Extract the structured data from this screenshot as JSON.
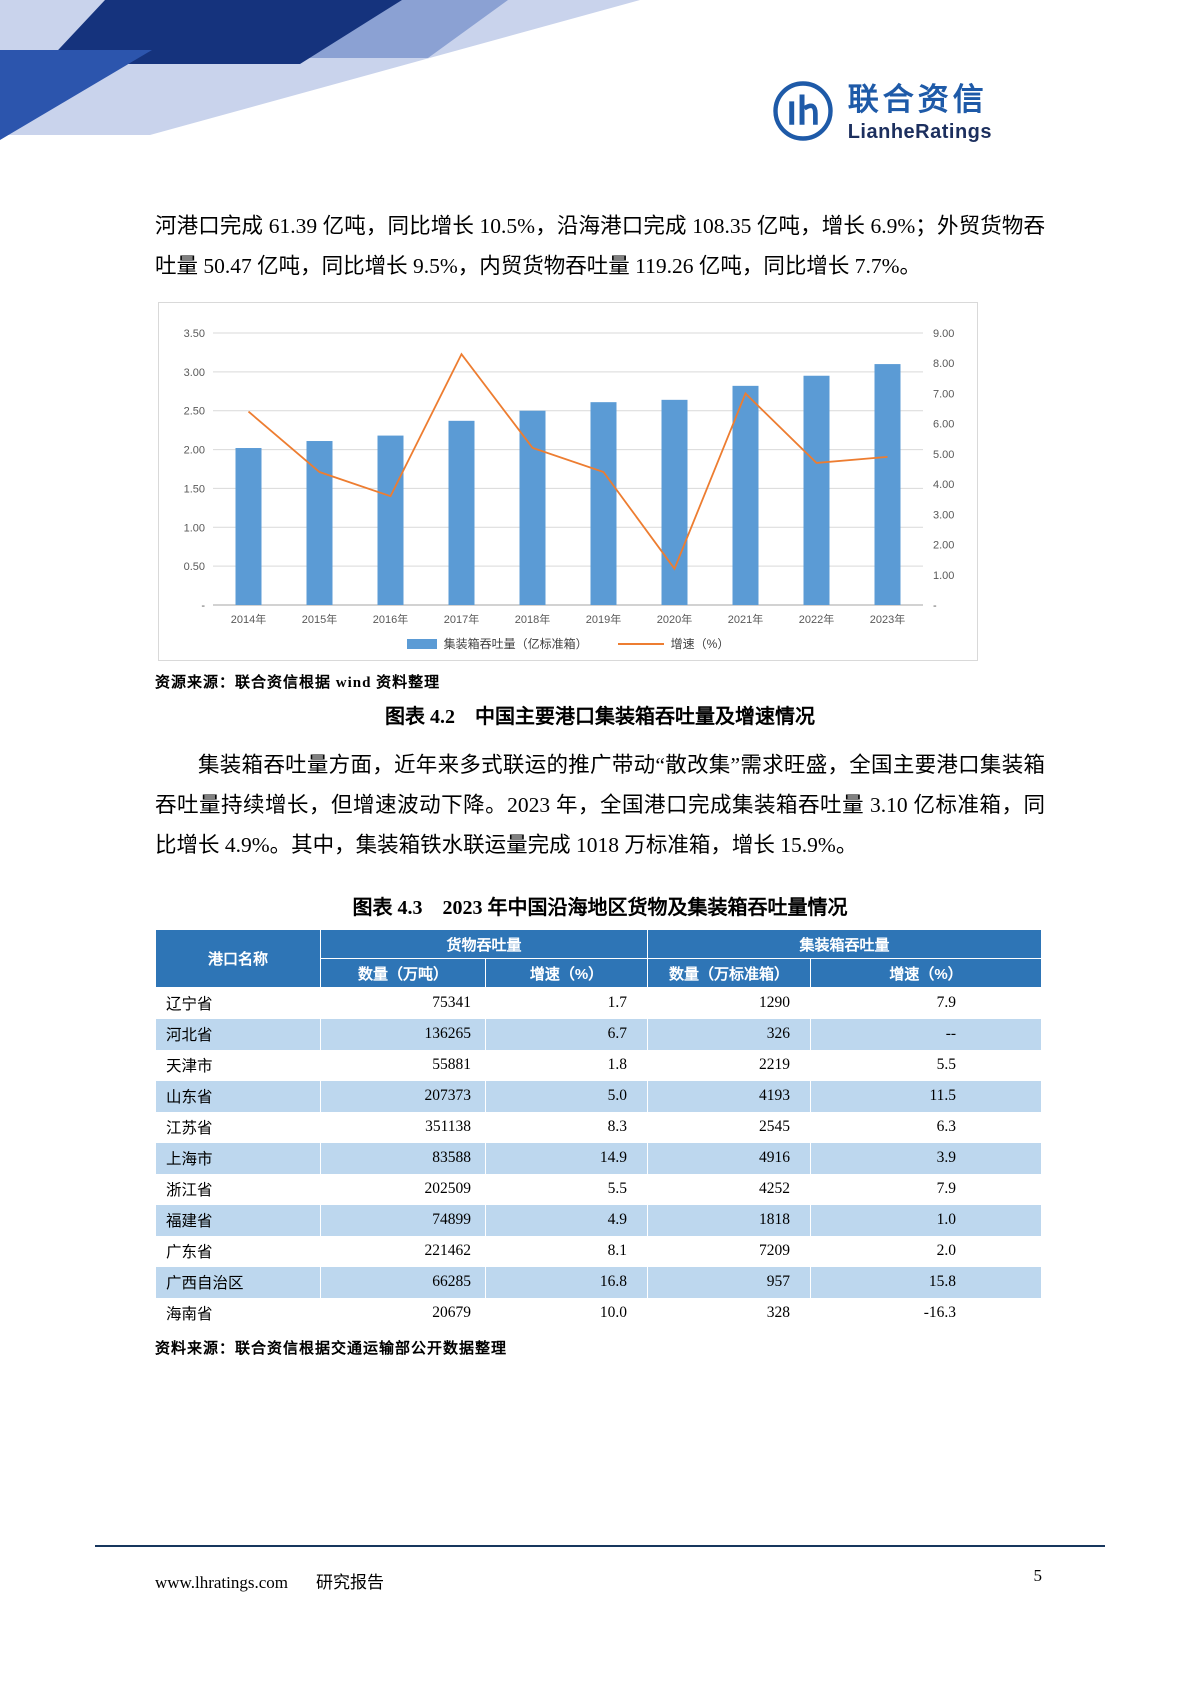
{
  "logo": {
    "cn": "联合资信",
    "en": "LianheRatings"
  },
  "text": {
    "p1": "河港口完成 61.39 亿吨，同比增长 10.5%，沿海港口完成 108.35 亿吨，增长 6.9%；外贸货物吞吐量 50.47 亿吨，同比增长 9.5%，内贸货物吞吐量 119.26 亿吨，同比增长 7.7%。",
    "p2": "集装箱吞吐量方面，近年来多式联运的推广带动“散改集”需求旺盛，全国主要港口集装箱吞吐量持续增长，但增速波动下降。2023 年，全国港口完成集装箱吞吐量 3.10 亿标准箱，同比增长 4.9%。其中，集装箱铁水联运量完成 1018 万标准箱，增长 15.9%。"
  },
  "chart": {
    "source": "资源来源：联合资信根据 wind 资料整理",
    "caption": "图表 4.2　中国主要港口集装箱吞吐量及增速情况"
  },
  "chart_data": {
    "type": "bar",
    "title": "",
    "categories": [
      "2014年",
      "2015年",
      "2016年",
      "2017年",
      "2018年",
      "2019年",
      "2020年",
      "2021年",
      "2022年",
      "2023年"
    ],
    "series": [
      {
        "name": "集装箱吞吐量（亿标准箱）",
        "type": "bar",
        "axis": "left",
        "color": "#5b9bd5",
        "values": [
          2.02,
          2.11,
          2.18,
          2.37,
          2.5,
          2.61,
          2.64,
          2.82,
          2.95,
          3.1
        ]
      },
      {
        "name": "增速（%）",
        "type": "line",
        "axis": "right",
        "color": "#ed7d31",
        "values": [
          6.4,
          4.4,
          3.6,
          8.3,
          5.2,
          4.4,
          1.2,
          7.0,
          4.7,
          4.9
        ]
      }
    ],
    "left_axis": {
      "min": 0,
      "max": 3.5,
      "step": 0.5,
      "labels": [
        "-",
        "0.50",
        "1.00",
        "1.50",
        "2.00",
        "2.50",
        "3.00",
        "3.50"
      ]
    },
    "right_axis": {
      "min": 0,
      "max": 9,
      "step": 1,
      "labels": [
        "-",
        "1.00",
        "2.00",
        "3.00",
        "4.00",
        "5.00",
        "6.00",
        "7.00",
        "8.00",
        "9.00"
      ]
    },
    "grid": true,
    "legend_position": "bottom"
  },
  "table": {
    "caption": "图表 4.3　2023 年中国沿海地区货物及集装箱吞吐量情况",
    "header": {
      "port": "港口名称",
      "cargo": "货物吞吐量",
      "container": "集装箱吞吐量",
      "sub": [
        "数量（万吨）",
        "增速（%）",
        "数量（万标准箱）",
        "增速（%）"
      ]
    },
    "rows": [
      [
        "辽宁省",
        "75341",
        "1.7",
        "1290",
        "7.9"
      ],
      [
        "河北省",
        "136265",
        "6.7",
        "326",
        "--"
      ],
      [
        "天津市",
        "55881",
        "1.8",
        "2219",
        "5.5"
      ],
      [
        "山东省",
        "207373",
        "5.0",
        "4193",
        "11.5"
      ],
      [
        "江苏省",
        "351138",
        "8.3",
        "2545",
        "6.3"
      ],
      [
        "上海市",
        "83588",
        "14.9",
        "4916",
        "3.9"
      ],
      [
        "浙江省",
        "202509",
        "5.5",
        "4252",
        "7.9"
      ],
      [
        "福建省",
        "74899",
        "4.9",
        "1818",
        "1.0"
      ],
      [
        "广东省",
        "221462",
        "8.1",
        "7209",
        "2.0"
      ],
      [
        "广西自治区",
        "66285",
        "16.8",
        "957",
        "15.8"
      ],
      [
        "海南省",
        "20679",
        "10.0",
        "328",
        "-16.3"
      ]
    ],
    "source": "资料来源：联合资信根据交通运输部公开数据整理"
  },
  "footer": {
    "site": "www.lhratings.com",
    "report": "研究报告",
    "page": "5"
  }
}
